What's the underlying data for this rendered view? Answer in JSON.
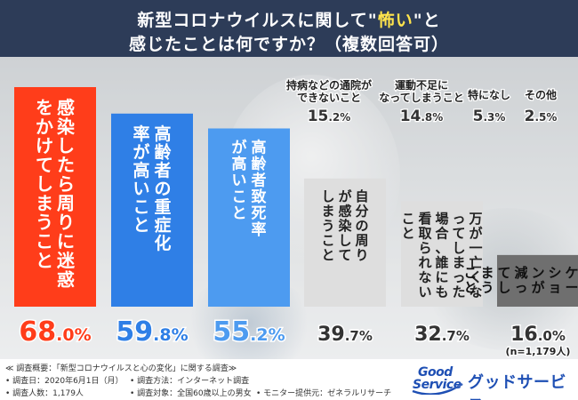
{
  "header": {
    "title_part1": "新型コロナウイルスに関して",
    "title_quote_open": "\"",
    "title_highlight": "怖い",
    "title_quote_close": "\"と",
    "title_line2": "感じたことは何ですか？（複数回答可）"
  },
  "chart_data": {
    "type": "bar",
    "title": "新型コロナウイルスに関して\"怖い\"と感じたことは何ですか？（複数回答可）",
    "unit": "%",
    "n_label": "(n=1,179人)",
    "ylim": [
      0,
      70
    ],
    "categories": [
      {
        "label": "感染したら周りに迷惑をかけてしまうこと",
        "value": 68.0,
        "display_int": "68",
        "display_dec": ".0",
        "color": "#ff3d1a",
        "label_color": "#ffffff",
        "value_color": "#ff3d1a"
      },
      {
        "label": "高齢者の重症化率が高いこと",
        "value": 59.8,
        "display_int": "59",
        "display_dec": ".8",
        "color": "#2f7fe6",
        "label_color": "#ffffff",
        "value_color": "#2f7fe6"
      },
      {
        "label": "高齢者致死率が高いこと",
        "value": 55.2,
        "display_int": "55",
        "display_dec": ".2",
        "color": "#4d9bf0",
        "label_color": "#ffffff",
        "value_color": "#4d9bf0"
      },
      {
        "label": "自分の周りが感染してしまうこと",
        "value": 39.7,
        "display_int": "39",
        "display_dec": ".7",
        "color": "#dedede",
        "label_color": "#222222",
        "value_color": "#333333"
      },
      {
        "label": "万が一亡くなってしまった場合、誰にも看取られないこと",
        "value": 32.7,
        "display_int": "32",
        "display_dec": ".7",
        "color": "#dedede",
        "label_color": "#222222",
        "value_color": "#333333"
      },
      {
        "label": "コミュニケーションが減ってしまうこと",
        "value": 16.0,
        "display_int": "16",
        "display_dec": ".0",
        "color": "#6f6f6f",
        "label_color": "#111111",
        "value_color": "#333333"
      }
    ],
    "minor_items": [
      {
        "label_lines": [
          "持病などの通院が",
          "できないこと"
        ],
        "value": 15.2,
        "display_int": "15",
        "display_dec": ".2"
      },
      {
        "label_lines": [
          "運動不足に",
          "なってしまうこと"
        ],
        "value": 14.8,
        "display_int": "14",
        "display_dec": ".8"
      },
      {
        "label_lines": [
          "特になし"
        ],
        "value": 5.3,
        "display_int": "5",
        "display_dec": ".3"
      },
      {
        "label_lines": [
          "その他"
        ],
        "value": 2.5,
        "display_int": "2",
        "display_dec": ".5"
      }
    ]
  },
  "footer": {
    "notes": [
      "≪ 調査概要：「新型コロナウイルスと心の変化」に関する調査≫",
      "• 調査日：2020年6月1日（月）",
      "• 調査方法：インターネット調査",
      "• 調査人数：1,179人",
      "• 調査対象：全国60歳以上の男女",
      "• モニター提供元：ゼネラルリサーチ"
    ],
    "logo_line1": "Good",
    "logo_line2": "Service",
    "brand_name": "グッドサービス",
    "accent": "#1e4fb4"
  }
}
